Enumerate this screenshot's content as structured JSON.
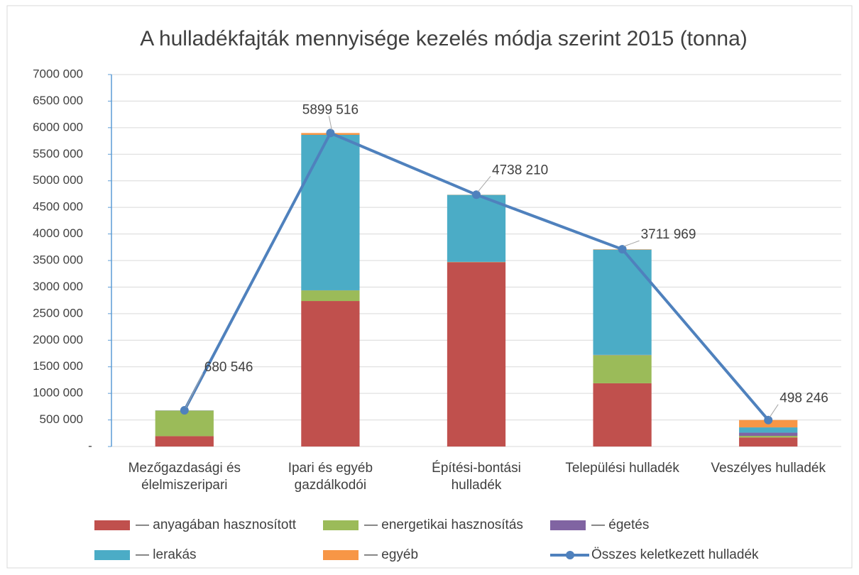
{
  "chart_data": {
    "type": "bar",
    "stacked": true,
    "title": "A hulladékfajták mennyisége kezelés módja szerint 2015 (tonna)",
    "categories": [
      "Mezőgazdasági és élelmiszeripari",
      "Ipari és egyéb gazdálkodói",
      "Építési-bontási hulladék",
      "Települési hulladék",
      "Veszélyes hulladék"
    ],
    "series": [
      {
        "name": "— anyagában hasznosított",
        "color": "#c0504d",
        "values": [
          195000,
          2738000,
          3470000,
          1190000,
          170000
        ]
      },
      {
        "name": "— energetikai hasznosítás",
        "color": "#9bbb59",
        "values": [
          480000,
          200000,
          5000,
          530000,
          30000
        ]
      },
      {
        "name": "— égetés",
        "color": "#8064a2",
        "values": [
          3000,
          1516,
          0,
          5000,
          60000
        ]
      },
      {
        "name": "— lerakás",
        "color": "#4bacc6",
        "values": [
          2000,
          2925000,
          1260000,
          1980000,
          100000
        ]
      },
      {
        "name": "— egyéb",
        "color": "#f79646",
        "values": [
          546,
          35000,
          3210,
          6969,
          138246
        ]
      },
      {
        "name": "Összes keletkezett hulladék",
        "type": "line",
        "color": "#4f81bd",
        "values": [
          680546,
          5899516,
          4738210,
          3711969,
          498246
        ],
        "value_labels": [
          "680 546",
          "5899 516",
          "4738 210",
          "3711 969",
          "498 246"
        ]
      }
    ],
    "ylim": [
      0,
      7000000
    ],
    "yticks": [
      {
        "value": 0,
        "label": "-"
      },
      {
        "value": 500000,
        "label": "500 000"
      },
      {
        "value": 1000000,
        "label": "1000 000"
      },
      {
        "value": 1500000,
        "label": "1500 000"
      },
      {
        "value": 2000000,
        "label": "2000 000"
      },
      {
        "value": 2500000,
        "label": "2500 000"
      },
      {
        "value": 3000000,
        "label": "3000 000"
      },
      {
        "value": 3500000,
        "label": "3500 000"
      },
      {
        "value": 4000000,
        "label": "4000 000"
      },
      {
        "value": 4500000,
        "label": "4500 000"
      },
      {
        "value": 5000000,
        "label": "5000 000"
      },
      {
        "value": 5500000,
        "label": "5500 000"
      },
      {
        "value": 6000000,
        "label": "6000 000"
      },
      {
        "value": 6500000,
        "label": "6500 000"
      },
      {
        "value": 7000000,
        "label": "7000 000"
      }
    ],
    "grid": true,
    "legend": "bottom"
  }
}
